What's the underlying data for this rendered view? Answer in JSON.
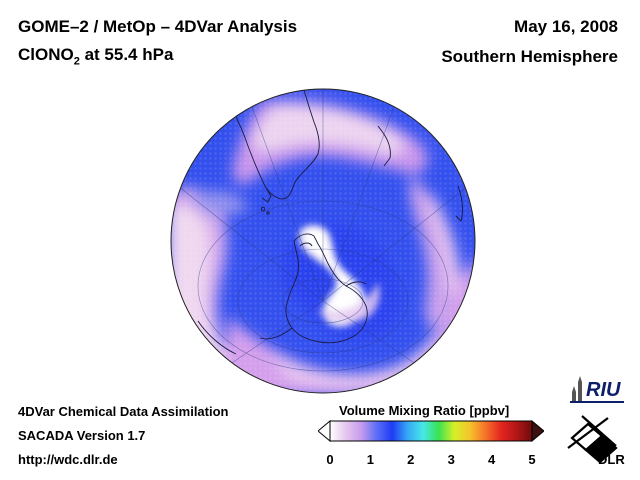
{
  "header": {
    "title": "GOME–2 / MetOp – 4DVar Analysis",
    "species_main": "ClONO",
    "species_sub": "2",
    "species_rest": " at 55.4 hPa",
    "date": "May 16, 2008",
    "hemisphere": "Southern Hemisphere"
  },
  "footer": {
    "line1": "4DVar Chemical Data Assimilation",
    "line2": "SACADA Version 1.7",
    "line3": "http://wdc.dlr.de"
  },
  "colorbar": {
    "label": "Volume Mixing Ratio [ppbv]",
    "ticks": [
      "0",
      "1",
      "2",
      "3",
      "4",
      "5"
    ],
    "min": 0,
    "max": 5,
    "colors": [
      "#ffffff",
      "#e5c8ee",
      "#c79cee",
      "#5d6ff5",
      "#1f3cf5",
      "#36a8f5",
      "#46e8e8",
      "#39e34e",
      "#d6ef2a",
      "#f5c42a",
      "#f5742a",
      "#e5261f",
      "#b21616",
      "#6d0c0c"
    ],
    "under_color": "#ffffff",
    "over_color": "#3a1010"
  },
  "logos": {
    "riu": "RIU",
    "dlr": "DLR"
  },
  "map": {
    "projection": "orthographic",
    "ocean_color": "#3350ee",
    "high_color": "#f3e6f3",
    "mid_color": "#d6a3ec"
  }
}
